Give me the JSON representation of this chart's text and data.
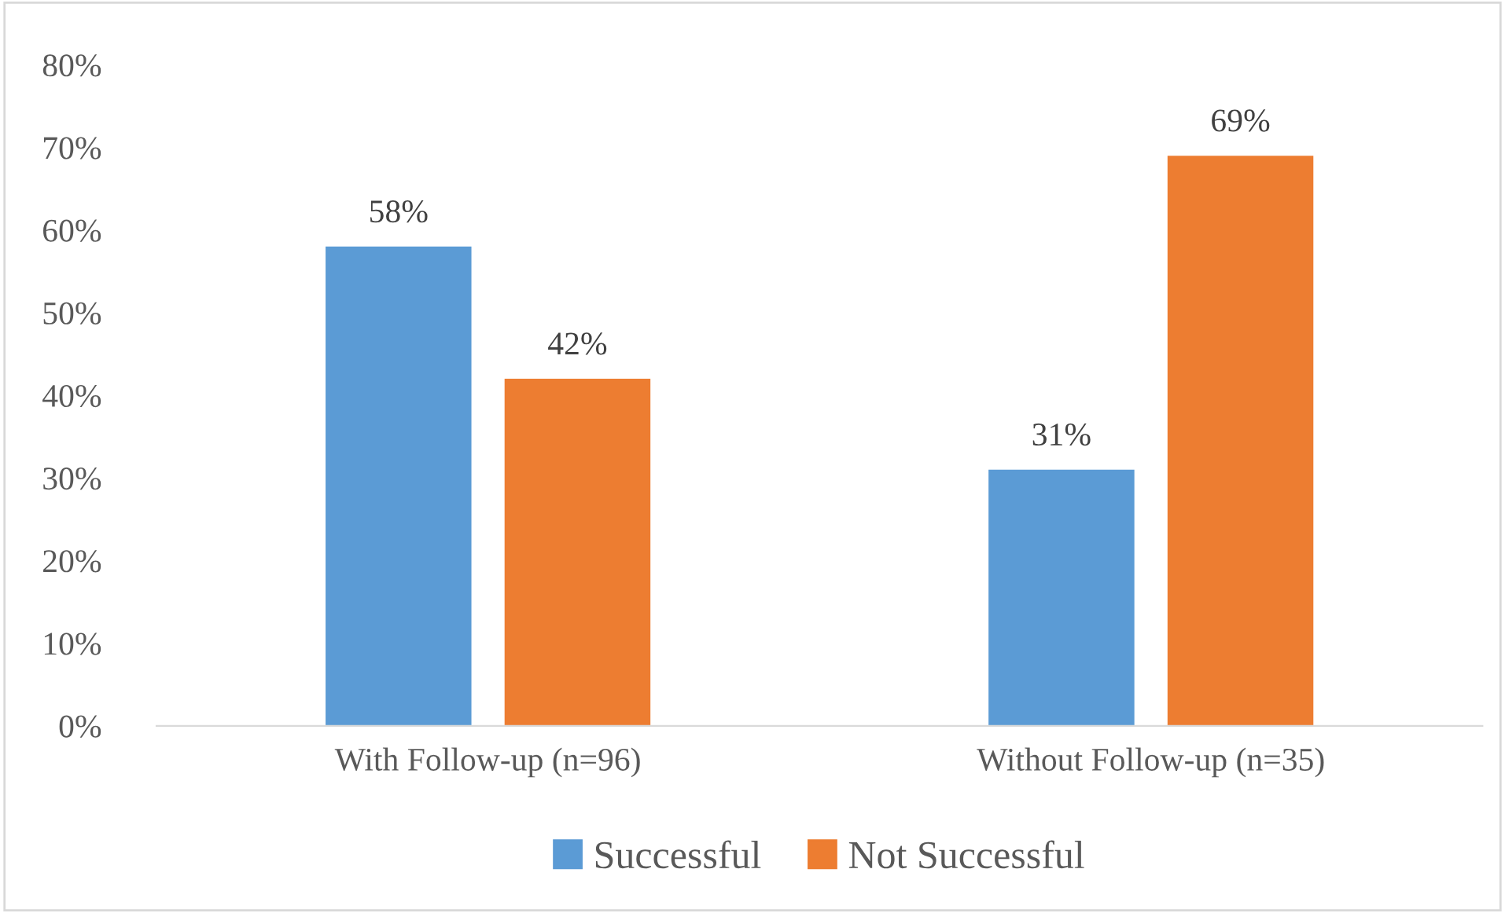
{
  "chart_data": {
    "type": "bar",
    "categories": [
      "With Follow-up (n=96)",
      "Without Follow-up (n=35)"
    ],
    "series": [
      {
        "name": "Successful",
        "color": "#5b9bd5",
        "values": [
          58,
          31
        ]
      },
      {
        "name": "Not Successful",
        "color": "#ed7d31",
        "values": [
          42,
          69
        ]
      }
    ],
    "ylim": [
      0,
      80
    ],
    "yticks": [
      {
        "value": 0,
        "label": "0%"
      },
      {
        "value": 10,
        "label": "10%"
      },
      {
        "value": 20,
        "label": "20%"
      },
      {
        "value": 30,
        "label": "30%"
      },
      {
        "value": 40,
        "label": "40%"
      },
      {
        "value": 50,
        "label": "50%"
      },
      {
        "value": 60,
        "label": "60%"
      },
      {
        "value": 70,
        "label": "70%"
      },
      {
        "value": 80,
        "label": "80%"
      }
    ],
    "value_labels": [
      [
        "58%",
        "31%"
      ],
      [
        "42%",
        "69%"
      ]
    ],
    "grid": false,
    "legend": "bottom"
  }
}
